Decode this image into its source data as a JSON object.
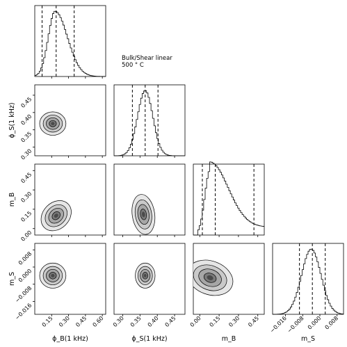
{
  "annotation": {
    "line1": "Bulk/Shear linear",
    "line2": "500$^\\circ$C"
  },
  "chart_data": {
    "type": "corner",
    "parameters": [
      {
        "key": "phiB",
        "label": "ϕ_B(1 kHz)",
        "range": [
          0.0,
          0.63
        ],
        "ticks": [
          0.15,
          0.3,
          0.45,
          0.6
        ],
        "tick_labels": [
          "0.15",
          "0.30",
          "0.45",
          "0.60"
        ],
        "quantiles": [
          0.065,
          0.19,
          0.35
        ],
        "peak": 0.18
      },
      {
        "key": "phiS",
        "label": "ϕ_S(1 kHz)",
        "range": [
          0.275,
          0.48
        ],
        "ticks": [
          0.3,
          0.35,
          0.4,
          0.45
        ],
        "tick_labels": [
          "0.30",
          "0.35",
          "0.40",
          "0.45"
        ],
        "quantiles": [
          0.328,
          0.365,
          0.402
        ],
        "peak": 0.365
      },
      {
        "key": "mB",
        "label": "m_B",
        "range": [
          -0.05,
          0.5
        ],
        "ticks": [
          0.0,
          0.15,
          0.3,
          0.45
        ],
        "tick_labels": [
          "0.00",
          "0.15",
          "0.30",
          "0.45"
        ],
        "quantiles": [
          0.02,
          0.12,
          0.42
        ],
        "peak": 0.08
      },
      {
        "key": "mS",
        "label": "m_S",
        "range": [
          -0.022,
          0.011
        ],
        "ticks": [
          -0.016,
          -0.008,
          0.0,
          0.008
        ],
        "tick_labels": [
          "−0.016",
          "−0.008",
          "0.000",
          "0.008"
        ],
        "quantiles": [
          -0.0095,
          -0.0035,
          0.0025
        ],
        "peak": -0.004
      }
    ],
    "ylabels": [
      "ϕ_S(1 kHz)",
      "m_B",
      "m_S"
    ],
    "ytick_labels": {
      "phiS": [
        "0.30",
        "0.35",
        "0.40",
        "0.45"
      ],
      "mB": [
        "0.00",
        "0.15",
        "0.30",
        "0.45"
      ],
      "mS": [
        "−0.016",
        "−0.008",
        "0.000",
        "0.008"
      ]
    },
    "contours_2d": [
      {
        "x": "phiB",
        "y": "phiS",
        "center": [
          0.16,
          0.368
        ],
        "spread": [
          0.09,
          0.026
        ]
      },
      {
        "x": "phiB",
        "y": "mB",
        "center": [
          0.19,
          0.1
        ],
        "spread": [
          0.09,
          0.1
        ]
      },
      {
        "x": "phiS",
        "y": "mB",
        "center": [
          0.36,
          0.11
        ],
        "spread": [
          0.025,
          0.12
        ]
      },
      {
        "x": "phiB",
        "y": "mS",
        "center": [
          0.16,
          -0.004
        ],
        "spread": [
          0.09,
          0.0045
        ]
      },
      {
        "x": "phiS",
        "y": "mS",
        "center": [
          0.365,
          -0.004
        ],
        "spread": [
          0.022,
          0.0045
        ]
      },
      {
        "x": "mB",
        "y": "mS",
        "center": [
          0.08,
          -0.005
        ],
        "spread": [
          0.14,
          0.006
        ]
      }
    ]
  }
}
